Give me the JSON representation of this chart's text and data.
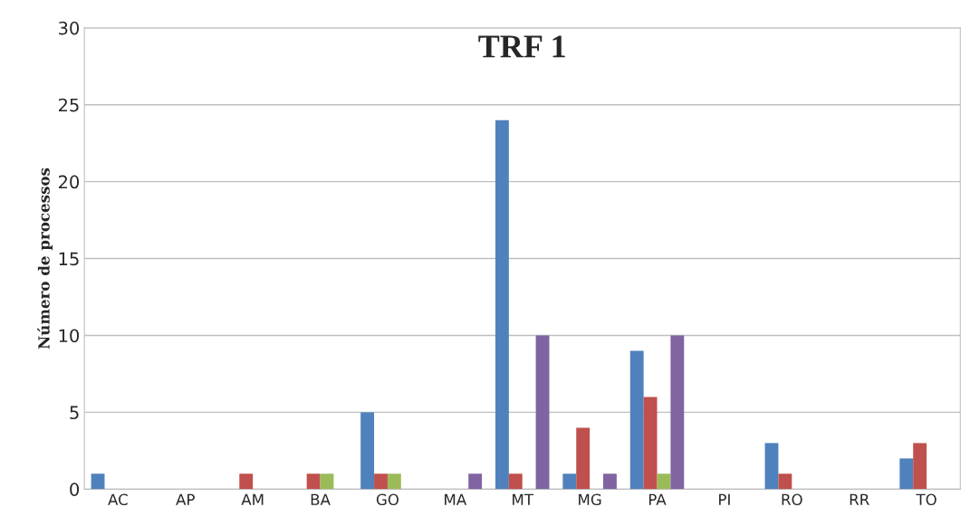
{
  "chart_data": {
    "type": "bar",
    "title": "TRF 1",
    "ylabel": "Número de processos",
    "categories": [
      "AC",
      "AP",
      "AM",
      "BA",
      "GO",
      "MA",
      "MT",
      "MG",
      "PA",
      "PI",
      "RO",
      "RR",
      "TO"
    ],
    "series": [
      {
        "color": "#4f81bd",
        "values": [
          1,
          0,
          0,
          0,
          5,
          0,
          24,
          1,
          9,
          0,
          3,
          0,
          2
        ]
      },
      {
        "color": "#c0504d",
        "values": [
          0,
          0,
          1,
          1,
          1,
          0,
          1,
          4,
          6,
          0,
          1,
          0,
          3
        ]
      },
      {
        "color": "#9bbb59",
        "values": [
          0,
          0,
          0,
          1,
          1,
          0,
          0,
          0,
          1,
          0,
          0,
          0,
          0
        ]
      },
      {
        "color": "#8064a2",
        "values": [
          0,
          0,
          0,
          0,
          0,
          1,
          10,
          1,
          10,
          0,
          0,
          0,
          0
        ]
      }
    ],
    "ylim": [
      0,
      30
    ],
    "yticks": [
      0,
      5,
      10,
      15,
      20,
      25,
      30
    ],
    "grid": "y",
    "legend": false
  }
}
